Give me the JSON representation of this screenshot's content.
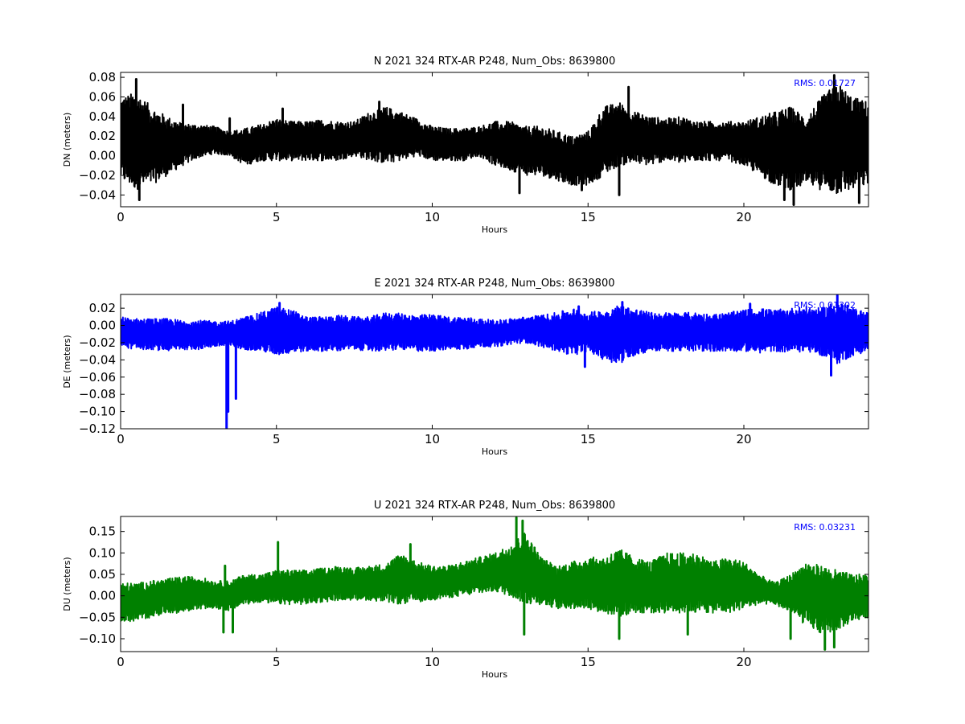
{
  "chart_data": [
    {
      "type": "line",
      "title": "N 2021 324 RTX-AR  P248, Num_Obs: 8639800",
      "xlabel": "Hours",
      "ylabel": "DN (meters)",
      "xlim": [
        0,
        24
      ],
      "ylim": [
        -0.052,
        0.085
      ],
      "xticks": [
        0,
        5,
        10,
        15,
        20
      ],
      "yticks": [
        -0.04,
        -0.02,
        0.0,
        0.02,
        0.04,
        0.06,
        0.08
      ],
      "ytick_labels": [
        "−0.04",
        "−0.02",
        "0.00",
        "0.02",
        "0.04",
        "0.06",
        "0.08"
      ],
      "color": "#000000",
      "annotation": "RMS:  0.01727",
      "annotation_color": "#0000ff",
      "envelope": {
        "x": [
          0,
          0.5,
          1,
          1.5,
          2,
          2.5,
          3,
          3.5,
          4,
          4.5,
          5,
          5.5,
          6,
          6.5,
          7,
          7.5,
          8,
          8.5,
          9,
          9.5,
          10,
          10.5,
          11,
          11.5,
          12,
          12.5,
          13,
          13.5,
          14,
          14.5,
          15,
          15.5,
          16,
          16.5,
          17,
          17.5,
          18,
          18.5,
          19,
          19.5,
          20,
          20.5,
          21,
          21.5,
          22,
          22.5,
          23,
          23.5,
          24
        ],
        "upper": [
          0.06,
          0.065,
          0.05,
          0.04,
          0.033,
          0.032,
          0.03,
          0.025,
          0.028,
          0.032,
          0.038,
          0.035,
          0.035,
          0.037,
          0.035,
          0.035,
          0.045,
          0.05,
          0.045,
          0.038,
          0.03,
          0.028,
          0.028,
          0.03,
          0.035,
          0.035,
          0.03,
          0.03,
          0.025,
          0.02,
          0.025,
          0.05,
          0.055,
          0.045,
          0.04,
          0.038,
          0.04,
          0.035,
          0.035,
          0.035,
          0.035,
          0.04,
          0.045,
          0.05,
          0.04,
          0.06,
          0.075,
          0.06,
          0.055
        ],
        "lower": [
          -0.025,
          -0.035,
          -0.03,
          -0.02,
          -0.01,
          -0.002,
          0.002,
          0.0,
          -0.01,
          -0.005,
          -0.005,
          -0.005,
          -0.005,
          -0.005,
          -0.005,
          0.0,
          -0.005,
          -0.008,
          -0.005,
          0.0,
          -0.005,
          -0.005,
          -0.005,
          0.0,
          -0.01,
          -0.015,
          -0.02,
          -0.02,
          -0.025,
          -0.03,
          -0.03,
          -0.02,
          -0.01,
          -0.008,
          -0.01,
          -0.005,
          -0.008,
          -0.005,
          -0.005,
          -0.005,
          -0.01,
          -0.02,
          -0.03,
          -0.035,
          -0.03,
          -0.035,
          -0.04,
          -0.035,
          -0.03
        ]
      },
      "spikes": [
        [
          0.6,
          -0.045
        ],
        [
          0.5,
          0.078
        ],
        [
          2.0,
          0.052
        ],
        [
          3.5,
          0.038
        ],
        [
          5.2,
          0.048
        ],
        [
          8.3,
          0.055
        ],
        [
          12.8,
          -0.038
        ],
        [
          14.8,
          -0.035
        ],
        [
          16.0,
          -0.04
        ],
        [
          16.3,
          0.07
        ],
        [
          21.3,
          -0.045
        ],
        [
          21.6,
          -0.05
        ],
        [
          22.9,
          0.082
        ],
        [
          23.7,
          -0.048
        ]
      ]
    },
    {
      "type": "line",
      "title": "E 2021 324 RTX-AR  P248, Num_Obs: 8639800",
      "xlabel": "Hours",
      "ylabel": "DE (meters)",
      "xlim": [
        0,
        24
      ],
      "ylim": [
        -0.12,
        0.036
      ],
      "xticks": [
        0,
        5,
        10,
        15,
        20
      ],
      "yticks": [
        -0.12,
        -0.1,
        -0.08,
        -0.06,
        -0.04,
        -0.02,
        0.0,
        0.02
      ],
      "ytick_labels": [
        "−0.12",
        "−0.10",
        "−0.08",
        "−0.06",
        "−0.04",
        "−0.02",
        "0.00",
        "0.02"
      ],
      "color": "#0000ff",
      "annotation": "RMS:  0.01302",
      "annotation_color": "#0000ff",
      "envelope": {
        "x": [
          0,
          0.5,
          1,
          1.5,
          2,
          2.5,
          3,
          3.5,
          4,
          4.5,
          5,
          5.5,
          6,
          6.5,
          7,
          7.5,
          8,
          8.5,
          9,
          9.5,
          10,
          10.5,
          11,
          11.5,
          12,
          12.5,
          13,
          13.5,
          14,
          14.5,
          15,
          15.5,
          16,
          16.5,
          17,
          17.5,
          18,
          18.5,
          19,
          19.5,
          20,
          20.5,
          21,
          21.5,
          22,
          22.5,
          23,
          23.5,
          24
        ],
        "upper": [
          0.01,
          0.008,
          0.008,
          0.008,
          0.006,
          0.006,
          0.005,
          0.005,
          0.01,
          0.015,
          0.022,
          0.018,
          0.01,
          0.01,
          0.012,
          0.01,
          0.01,
          0.015,
          0.014,
          0.012,
          0.013,
          0.01,
          0.01,
          0.008,
          0.006,
          0.008,
          0.01,
          0.012,
          0.015,
          0.02,
          0.015,
          0.018,
          0.024,
          0.02,
          0.015,
          0.015,
          0.015,
          0.015,
          0.013,
          0.015,
          0.018,
          0.02,
          0.018,
          0.02,
          0.022,
          0.02,
          0.03,
          0.02,
          0.015
        ],
        "lower": [
          -0.025,
          -0.028,
          -0.028,
          -0.03,
          -0.028,
          -0.028,
          -0.025,
          -0.025,
          -0.028,
          -0.03,
          -0.035,
          -0.032,
          -0.03,
          -0.03,
          -0.03,
          -0.028,
          -0.03,
          -0.03,
          -0.028,
          -0.03,
          -0.03,
          -0.028,
          -0.028,
          -0.025,
          -0.025,
          -0.022,
          -0.02,
          -0.025,
          -0.03,
          -0.035,
          -0.03,
          -0.04,
          -0.045,
          -0.035,
          -0.03,
          -0.03,
          -0.03,
          -0.03,
          -0.03,
          -0.03,
          -0.03,
          -0.032,
          -0.03,
          -0.032,
          -0.03,
          -0.035,
          -0.045,
          -0.035,
          -0.03
        ]
      },
      "spikes": [
        [
          3.4,
          -0.12
        ],
        [
          3.45,
          -0.1
        ],
        [
          3.7,
          -0.085
        ],
        [
          5.1,
          0.026
        ],
        [
          14.7,
          0.022
        ],
        [
          16.1,
          0.027
        ],
        [
          20.2,
          0.025
        ],
        [
          23.0,
          0.035
        ],
        [
          22.8,
          -0.058
        ],
        [
          14.9,
          -0.048
        ]
      ]
    },
    {
      "type": "line",
      "title": "U 2021 324 RTX-AR  P248, Num_Obs: 8639800",
      "xlabel": "Hours",
      "ylabel": "DU (meters)",
      "xlim": [
        0,
        24
      ],
      "ylim": [
        -0.13,
        0.185
      ],
      "xticks": [
        0,
        5,
        10,
        15,
        20
      ],
      "yticks": [
        -0.1,
        -0.05,
        0.0,
        0.05,
        0.1,
        0.15
      ],
      "ytick_labels": [
        "−0.10",
        "−0.05",
        "0.00",
        "0.05",
        "0.10",
        "0.15"
      ],
      "color": "#008000",
      "annotation": "RMS:  0.03231",
      "annotation_color": "#0000ff",
      "envelope": {
        "x": [
          0,
          0.5,
          1,
          1.5,
          2,
          2.5,
          3,
          3.5,
          4,
          4.5,
          5,
          5.5,
          6,
          6.5,
          7,
          7.5,
          8,
          8.5,
          9,
          9.5,
          10,
          10.5,
          11,
          11.5,
          12,
          12.5,
          13,
          13.5,
          14,
          14.5,
          15,
          15.5,
          16,
          16.5,
          17,
          17.5,
          18,
          18.5,
          19,
          19.5,
          20,
          20.5,
          21,
          21.5,
          22,
          22.5,
          23,
          23.5,
          24
        ],
        "upper": [
          0.03,
          0.03,
          0.035,
          0.04,
          0.045,
          0.045,
          0.035,
          0.035,
          0.05,
          0.05,
          0.06,
          0.06,
          0.06,
          0.065,
          0.07,
          0.065,
          0.07,
          0.075,
          0.1,
          0.08,
          0.07,
          0.07,
          0.08,
          0.09,
          0.1,
          0.12,
          0.15,
          0.09,
          0.07,
          0.08,
          0.09,
          0.09,
          0.11,
          0.09,
          0.08,
          0.1,
          0.1,
          0.1,
          0.08,
          0.09,
          0.08,
          0.05,
          0.03,
          0.05,
          0.08,
          0.07,
          0.06,
          0.05,
          0.05
        ],
        "lower": [
          -0.06,
          -0.06,
          -0.05,
          -0.04,
          -0.04,
          -0.03,
          -0.03,
          -0.035,
          -0.02,
          -0.015,
          -0.02,
          -0.02,
          -0.02,
          -0.015,
          -0.01,
          -0.01,
          -0.01,
          -0.015,
          -0.02,
          -0.015,
          -0.01,
          -0.005,
          0.0,
          0.005,
          0.01,
          0.0,
          -0.02,
          -0.02,
          -0.03,
          -0.03,
          -0.03,
          -0.04,
          -0.05,
          -0.04,
          -0.04,
          -0.04,
          -0.04,
          -0.04,
          -0.04,
          -0.04,
          -0.03,
          -0.02,
          -0.02,
          -0.04,
          -0.07,
          -0.09,
          -0.08,
          -0.06,
          -0.05
        ],
        "center": [
          -0.015,
          -0.015,
          -0.01,
          -0.002,
          0.003,
          0.008,
          0.003,
          0.0,
          0.012,
          0.017,
          0.02,
          0.02,
          0.02,
          0.025,
          0.03,
          0.028,
          0.03,
          0.03,
          0.04,
          0.032,
          0.03,
          0.032,
          0.04,
          0.047,
          0.055,
          0.06,
          0.065,
          0.035,
          0.02,
          0.025,
          0.03,
          0.025,
          0.03,
          0.025,
          0.02,
          0.03,
          0.03,
          0.03,
          0.02,
          0.025,
          0.025,
          0.015,
          0.005,
          0.005,
          0.005,
          -0.01,
          -0.01,
          -0.005,
          0.0
        ]
      },
      "spikes": [
        [
          5.05,
          0.125
        ],
        [
          12.7,
          0.182
        ],
        [
          12.9,
          0.175
        ],
        [
          3.3,
          -0.085
        ],
        [
          3.6,
          -0.085
        ],
        [
          12.95,
          -0.09
        ],
        [
          22.6,
          -0.125
        ],
        [
          22.9,
          -0.12
        ],
        [
          9.3,
          0.12
        ],
        [
          16.0,
          -0.1
        ],
        [
          18.2,
          -0.09
        ],
        [
          21.5,
          -0.1
        ],
        [
          3.35,
          0.07
        ]
      ]
    }
  ]
}
